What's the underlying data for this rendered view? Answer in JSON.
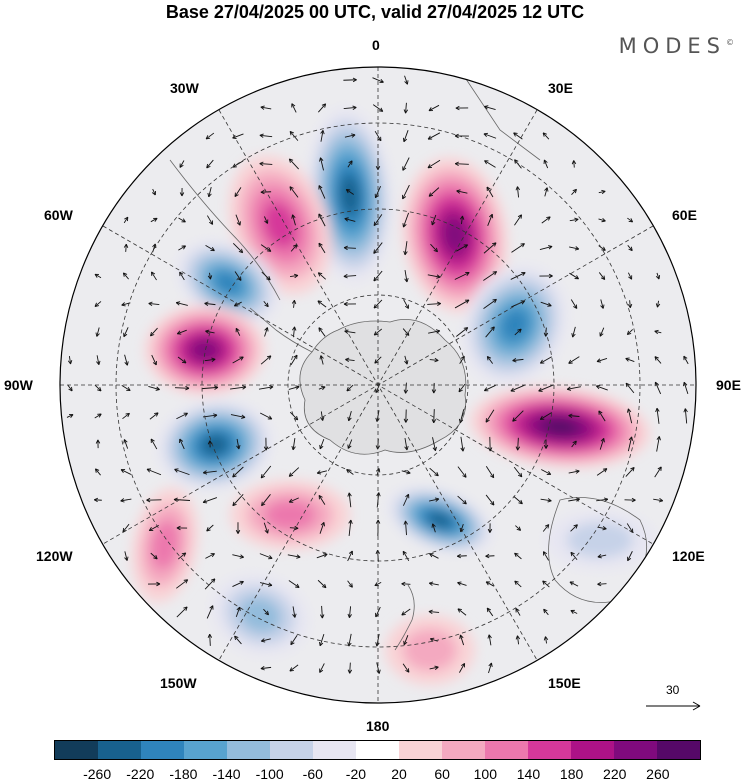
{
  "title": "Base 27/04/2025 00 UTC, valid 27/04/2025 12 UTC",
  "brand": "MODES",
  "brand_mark": "©",
  "longitude_labels": {
    "top": "0",
    "top_right": "30E",
    "upper_right": "60E",
    "right": "90E",
    "lower_right": "120E",
    "bottom_right": "150E",
    "bottom": "180",
    "bottom_left": "150W",
    "lower_left": "120W",
    "left": "90W",
    "upper_left": "60W",
    "top_left": "30W"
  },
  "reference_vector": {
    "value": "30"
  },
  "colorbar": {
    "colors": [
      "#123c5a",
      "#18618e",
      "#2f84bc",
      "#58a3cf",
      "#93bcdc",
      "#c6d2e8",
      "#e7e6f2",
      "#ffffff",
      "#f9d3d6",
      "#f4a9c0",
      "#ec78ad",
      "#d6389a",
      "#ad1287",
      "#800a7d",
      "#560868"
    ],
    "tick_labels": [
      "-260",
      "-220",
      "-180",
      "-140",
      "-100",
      "-60",
      "-20",
      "20",
      "60",
      "100",
      "140",
      "180",
      "220",
      "260"
    ]
  },
  "anomaly_fields": [
    {
      "name": "pos-near-30E",
      "sign": "positive",
      "intensity": 250
    },
    {
      "name": "neg-near-0",
      "sign": "negative",
      "intensity": 230
    },
    {
      "name": "pos-near-20W",
      "sign": "positive",
      "intensity": 160
    },
    {
      "name": "neg-near-50W",
      "sign": "negative",
      "intensity": 200
    },
    {
      "name": "pos-near-75W",
      "sign": "positive",
      "intensity": 250
    },
    {
      "name": "neg-near-105W",
      "sign": "negative",
      "intensity": 220
    },
    {
      "name": "neg-near-60E",
      "sign": "negative",
      "intensity": 200
    },
    {
      "name": "pos-near-95E",
      "sign": "positive",
      "intensity": 260
    },
    {
      "name": "neg-near-135E",
      "sign": "negative",
      "intensity": 220
    },
    {
      "name": "pos-near-150W",
      "sign": "positive",
      "intensity": 120
    },
    {
      "name": "pos-near-115W",
      "sign": "positive",
      "intensity": 100
    },
    {
      "name": "neg-near-135W",
      "sign": "negative",
      "intensity": 100
    },
    {
      "name": "pos-near-165E",
      "sign": "positive",
      "intensity": 80
    },
    {
      "name": "neg-near-115E",
      "sign": "negative",
      "intensity": 60
    }
  ]
}
